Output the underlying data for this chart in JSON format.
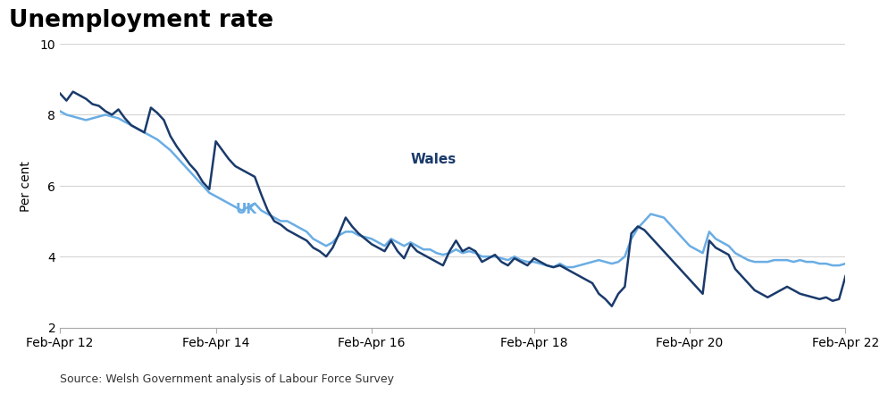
{
  "title": "Unemployment rate",
  "ylabel": "Per cent",
  "source": "Source: Welsh Government analysis of Labour Force Survey",
  "background_color": "#ffffff",
  "title_color": "#000000",
  "wales_color": "#1a3a6b",
  "uk_color": "#6aade4",
  "ylim": [
    2,
    10
  ],
  "yticks": [
    2,
    4,
    6,
    8,
    10
  ],
  "xtick_labels": [
    "Feb-Apr 12",
    "Feb-Apr 14",
    "Feb-Apr 16",
    "Feb-Apr 18",
    "Feb-Apr 20",
    "Feb-Apr 22"
  ],
  "wales_label": "Wales",
  "uk_label": "UK",
  "wales_y": [
    8.6,
    8.4,
    8.65,
    8.55,
    8.45,
    8.3,
    8.25,
    8.1,
    8.0,
    8.15,
    7.9,
    7.7,
    7.6,
    7.5,
    8.2,
    8.05,
    7.85,
    7.4,
    7.1,
    6.85,
    6.6,
    6.4,
    6.1,
    5.9,
    7.25,
    7.0,
    6.75,
    6.55,
    6.45,
    6.35,
    6.25,
    5.75,
    5.3,
    5.0,
    4.9,
    4.75,
    4.65,
    4.55,
    4.45,
    4.25,
    4.15,
    4.0,
    4.25,
    4.65,
    5.1,
    4.85,
    4.65,
    4.5,
    4.35,
    4.25,
    4.15,
    4.45,
    4.15,
    3.95,
    4.35,
    4.15,
    4.05,
    3.95,
    3.85,
    3.75,
    4.15,
    4.45,
    4.15,
    4.25,
    4.15,
    3.85,
    3.95,
    4.05,
    3.85,
    3.75,
    3.95,
    3.85,
    3.75,
    3.95,
    3.85,
    3.75,
    3.7,
    3.75,
    3.65,
    3.55,
    3.45,
    3.35,
    3.25,
    2.95,
    2.8,
    2.6,
    2.95,
    3.15,
    4.65,
    4.85,
    4.75,
    4.55,
    4.35,
    4.15,
    3.95,
    3.75,
    3.55,
    3.35,
    3.15,
    2.95,
    4.45,
    4.25,
    4.15,
    4.05,
    3.65,
    3.45,
    3.25,
    3.05,
    2.95,
    2.85,
    2.95,
    3.05,
    3.15,
    3.05,
    2.95,
    2.9,
    2.85,
    2.8,
    2.85,
    2.75,
    2.8,
    3.45
  ],
  "uk_y": [
    8.1,
    8.0,
    7.95,
    7.9,
    7.85,
    7.9,
    7.95,
    8.0,
    7.95,
    7.9,
    7.8,
    7.7,
    7.6,
    7.5,
    7.4,
    7.3,
    7.15,
    7.0,
    6.8,
    6.6,
    6.4,
    6.2,
    6.0,
    5.8,
    5.7,
    5.6,
    5.5,
    5.4,
    5.3,
    5.4,
    5.5,
    5.3,
    5.2,
    5.1,
    5.0,
    5.0,
    4.9,
    4.8,
    4.7,
    4.5,
    4.4,
    4.3,
    4.4,
    4.6,
    4.7,
    4.7,
    4.6,
    4.55,
    4.5,
    4.4,
    4.3,
    4.5,
    4.4,
    4.3,
    4.4,
    4.3,
    4.2,
    4.2,
    4.1,
    4.05,
    4.1,
    4.2,
    4.1,
    4.15,
    4.1,
    4.0,
    4.0,
    4.0,
    3.95,
    3.9,
    4.0,
    3.9,
    3.85,
    3.85,
    3.8,
    3.75,
    3.7,
    3.8,
    3.7,
    3.7,
    3.75,
    3.8,
    3.85,
    3.9,
    3.85,
    3.8,
    3.85,
    4.0,
    4.5,
    4.8,
    5.0,
    5.2,
    5.15,
    5.1,
    4.9,
    4.7,
    4.5,
    4.3,
    4.2,
    4.1,
    4.7,
    4.5,
    4.4,
    4.3,
    4.1,
    4.0,
    3.9,
    3.85,
    3.85,
    3.85,
    3.9,
    3.9,
    3.9,
    3.85,
    3.9,
    3.85,
    3.85,
    3.8,
    3.8,
    3.75,
    3.75,
    3.8
  ]
}
